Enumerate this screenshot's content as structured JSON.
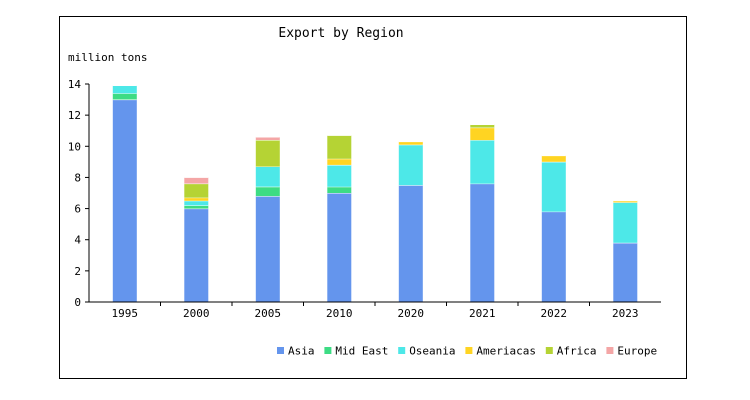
{
  "chart_data": {
    "type": "bar",
    "stacked": true,
    "title": "Export by Region",
    "ylabel": "million tons",
    "xlabel": "",
    "categories": [
      "1995",
      "2000",
      "2005",
      "2010",
      "2020",
      "2021",
      "2022",
      "2023"
    ],
    "ylim": [
      0,
      14
    ],
    "yticks": [
      0,
      2,
      4,
      6,
      8,
      10,
      12,
      14
    ],
    "grid": false,
    "legend_position": "bottom-right",
    "series": [
      {
        "name": "Asia",
        "color": "#6495ED",
        "values": [
          13.0,
          6.0,
          6.8,
          7.0,
          7.5,
          7.6,
          5.8,
          3.8
        ]
      },
      {
        "name": "Mid East",
        "color": "#3DDC84",
        "values": [
          0.4,
          0.2,
          0.6,
          0.4,
          0.0,
          0.0,
          0.0,
          0.0
        ]
      },
      {
        "name": "Oseania",
        "color": "#4DE8E8",
        "values": [
          0.5,
          0.3,
          1.3,
          1.4,
          2.6,
          2.8,
          3.2,
          2.6
        ]
      },
      {
        "name": "Ameriacas",
        "color": "#FFD422",
        "values": [
          0.0,
          0.2,
          0.0,
          0.4,
          0.2,
          0.8,
          0.4,
          0.1
        ]
      },
      {
        "name": "Africa",
        "color": "#B5D334",
        "values": [
          0.0,
          0.9,
          1.7,
          1.5,
          0.0,
          0.2,
          0.0,
          0.0
        ]
      },
      {
        "name": "Europe",
        "color": "#F4A6A6",
        "values": [
          0.0,
          0.4,
          0.2,
          0.0,
          0.0,
          0.0,
          0.0,
          0.0
        ]
      }
    ]
  }
}
